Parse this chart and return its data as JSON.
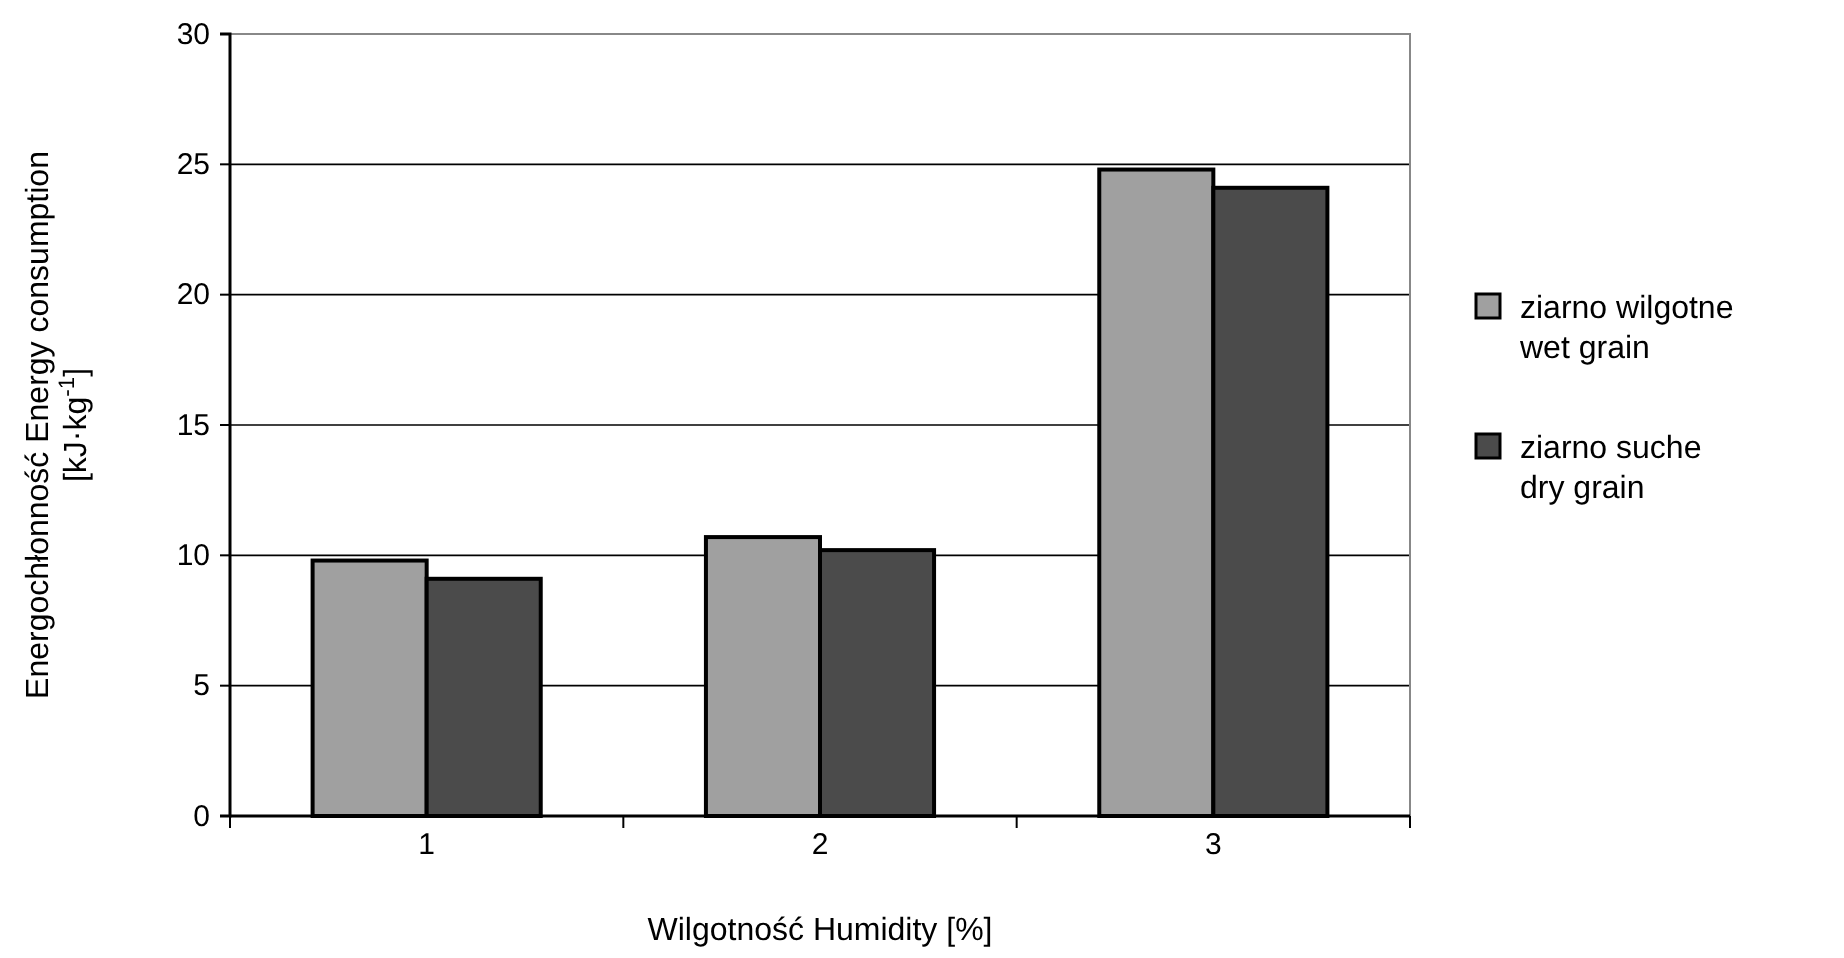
{
  "chart_data": {
    "type": "bar",
    "categories": [
      "1",
      "2",
      "3"
    ],
    "series": [
      {
        "name": "ziarno wilgotne\nwet grain",
        "color": "#a0a0a0",
        "values": [
          9.8,
          10.7,
          24.8
        ]
      },
      {
        "name": "ziarno suche\ndry grain",
        "color": "#4b4b4b",
        "values": [
          9.1,
          10.2,
          24.1
        ]
      }
    ],
    "xlabel": "Wilgotność  Humidity  [%]",
    "ylabel": "Energochłonność  Energy consumption\n[kJ·kg$^{-1}$]",
    "ylim": [
      0,
      30
    ],
    "yticks": [
      0,
      5,
      10,
      15,
      20,
      25,
      30
    ],
    "grid": "y",
    "legend": "right"
  }
}
